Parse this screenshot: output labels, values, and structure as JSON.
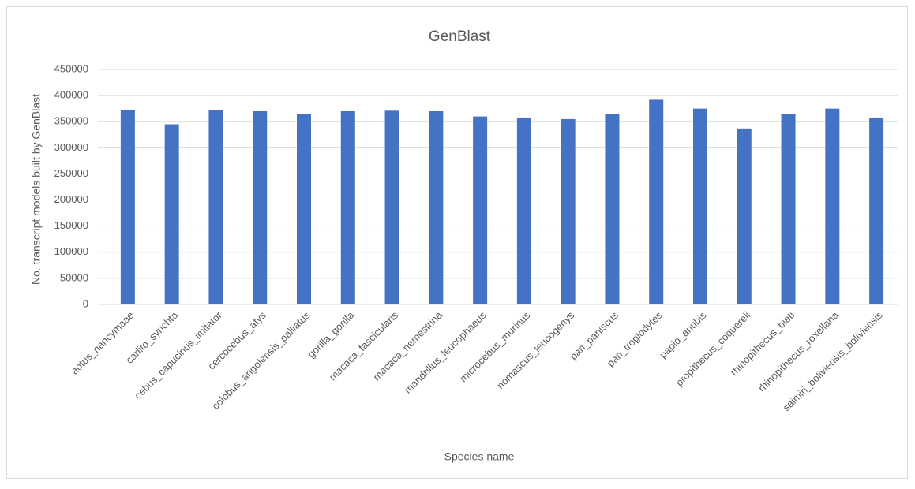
{
  "chart_data": {
    "type": "bar",
    "title": "GenBlast",
    "x_label": "Species name",
    "y_label": "No. transcript models built by GenBlast",
    "categories": [
      "aotus_nancymaae",
      "carlito_syrichta",
      "cebus_capucinus_imitator",
      "cercocebus_atys",
      "colobus_angolensis_palliatus",
      "gorilla_gorilla",
      "macaca_fascicularis",
      "macaca_nemestrina",
      "mandrillus_leucophaeus",
      "microcebus_murinus",
      "nomascus_leucogenys",
      "pan_paniscus",
      "pan_troglodytes",
      "papio_anubis",
      "propithecus_coquereli",
      "rhinopithecus_bieti",
      "rhinopithecus_roxellana",
      "saimiri_boliviensis_boliviensis"
    ],
    "values": [
      372000,
      345000,
      372000,
      370000,
      364000,
      370000,
      371000,
      370000,
      360000,
      358000,
      355000,
      365000,
      392000,
      375000,
      337000,
      364000,
      375000,
      358000
    ],
    "color": "#4472c4",
    "ylim": [
      0,
      450000
    ],
    "yticks": [
      0,
      50000,
      100000,
      150000,
      200000,
      250000,
      300000,
      350000,
      400000,
      450000
    ],
    "grid": true
  }
}
